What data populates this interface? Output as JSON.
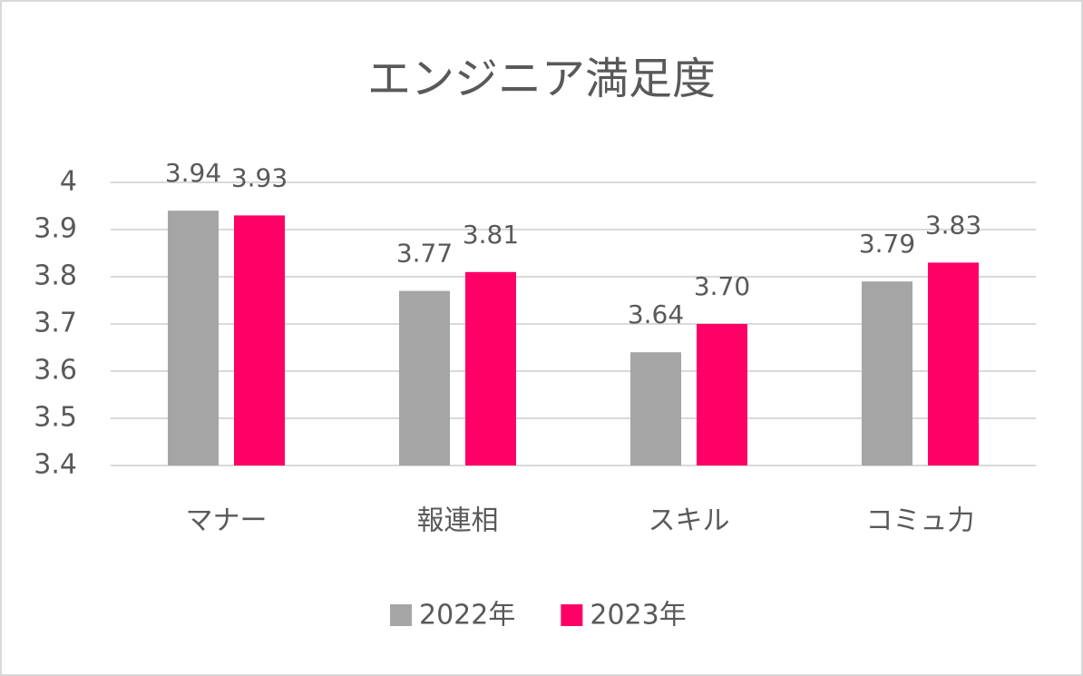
{
  "chart_data": {
    "type": "bar",
    "title": "エンジニア満足度",
    "categories": [
      "マナー",
      "報連相",
      "スキル",
      "コミュ力"
    ],
    "series": [
      {
        "name": "2022年",
        "color": "#a5a5a5",
        "values": [
          3.94,
          3.77,
          3.64,
          3.79
        ],
        "value_labels": [
          "3.94",
          "3.77",
          "3.64",
          "3.79"
        ]
      },
      {
        "name": "2023年",
        "color": "#ff0066",
        "values": [
          3.93,
          3.81,
          3.7,
          3.83
        ],
        "value_labels": [
          "3.93",
          "3.81",
          "3.70",
          "3.83"
        ]
      }
    ],
    "ylim": [
      3.4,
      4
    ],
    "yticks": [
      3.4,
      3.5,
      3.6,
      3.7,
      3.8,
      3.9,
      4
    ],
    "grid": true,
    "legend": "bottom"
  }
}
